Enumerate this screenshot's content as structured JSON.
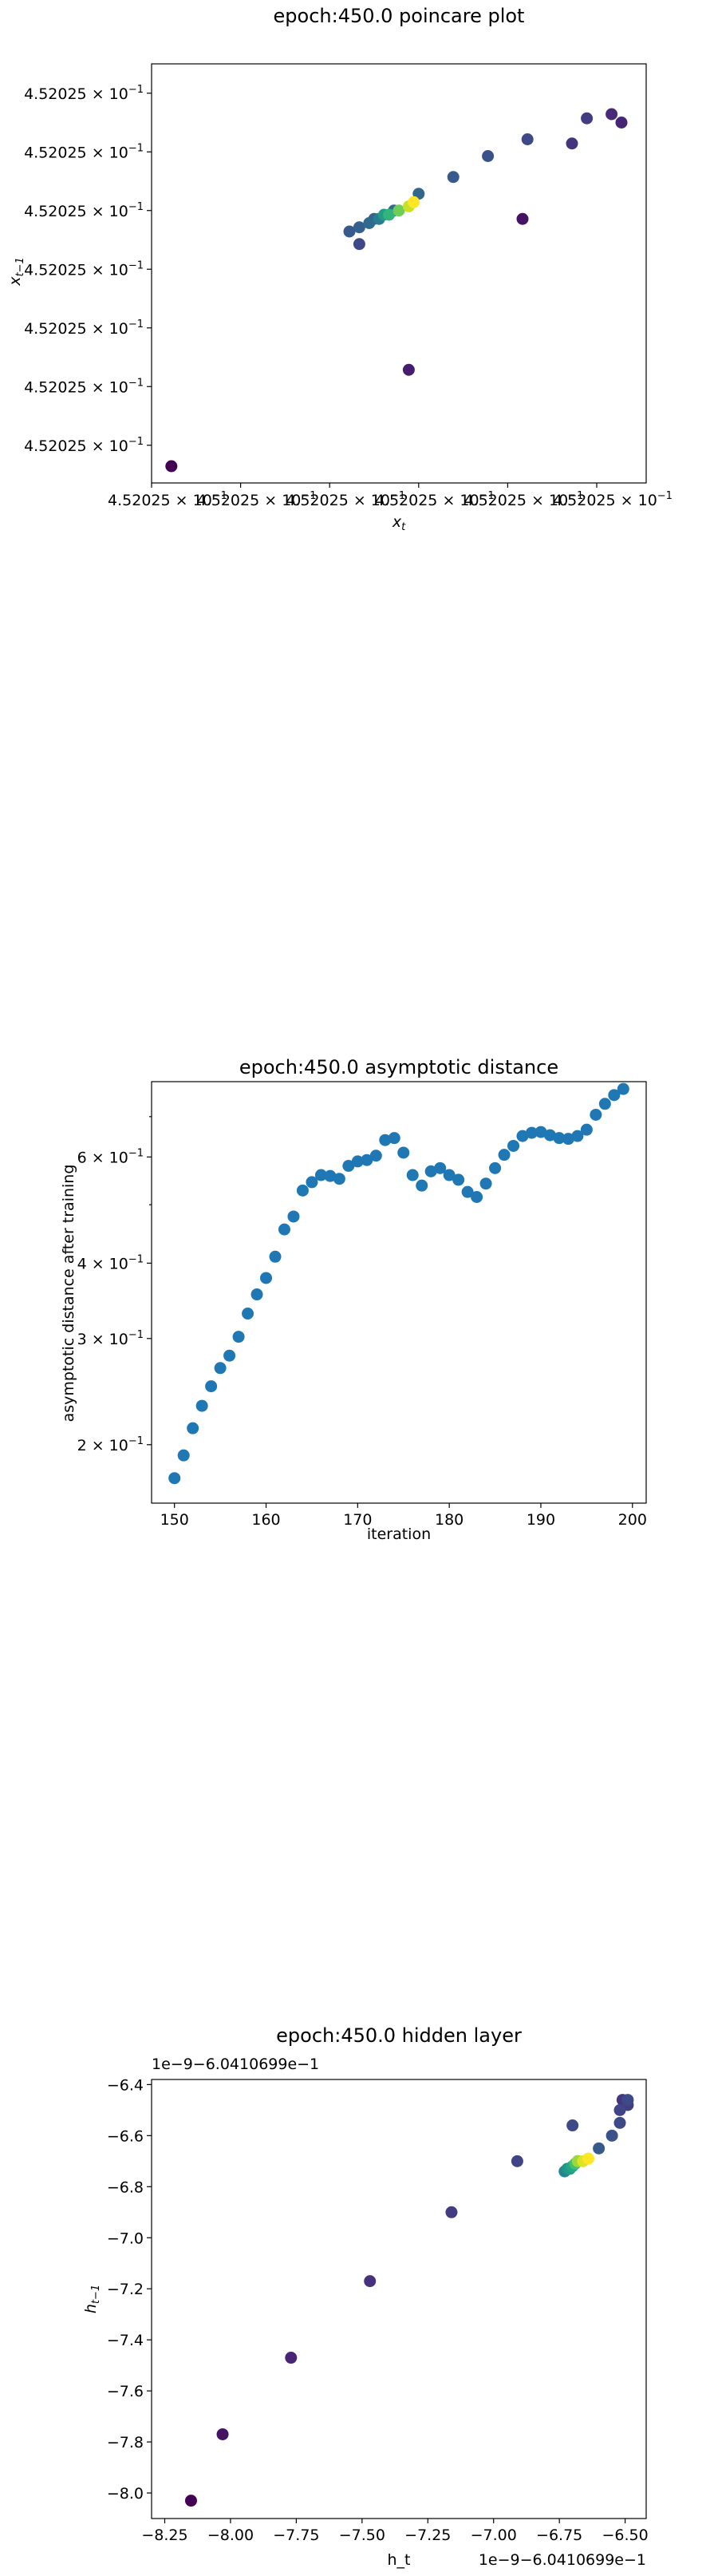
{
  "charts": {
    "poincare": {
      "title": "epoch:450.0 poincare plot",
      "xlabel": "x_t",
      "ylabel": "x_{t-1}",
      "xticklabel": "4.52025 × 10",
      "yticklabel": "4.52025 × 10",
      "tick_exponent": "−1"
    },
    "asymptotic": {
      "title": "epoch:450.0 asymptotic distance",
      "xlabel": "iteration",
      "ylabel": "asymptotic distance after training",
      "offset": "",
      "xticks": [
        "150",
        "160",
        "170",
        "180",
        "190",
        "200"
      ],
      "yticks": [
        {
          "base": "2 × 10",
          "exp": "−1"
        },
        {
          "base": "3 × 10",
          "exp": "−1"
        },
        {
          "base": "4 × 10",
          "exp": "−1"
        },
        {
          "base": "6 × 10",
          "exp": "−1"
        }
      ]
    },
    "hidden": {
      "title": "epoch:450.0 hidden layer",
      "xlabel": "h_t",
      "ylabel": "h_{t-1}",
      "y_offset": "1e−9−6.0410699e−1",
      "x_offset": "1e−9−6.0410699e−1",
      "xticks": [
        "−8.25",
        "−8.00",
        "−7.75",
        "−7.50",
        "−7.25",
        "−7.00",
        "−6.75",
        "−6.50"
      ],
      "yticks": [
        "−6.4",
        "−6.6",
        "−6.8",
        "−7.0",
        "−7.2",
        "−7.4",
        "−7.6",
        "−7.8",
        "−8.0"
      ]
    }
  },
  "chart_data": [
    {
      "type": "scatter",
      "title": "epoch:450.0 poincare plot",
      "xlabel": "x_t",
      "ylabel": "x_{t-1}",
      "xlim": [
        0,
        1
      ],
      "ylim": [
        0,
        1
      ],
      "x": [
        0.04,
        0.42,
        0.4,
        0.42,
        0.45,
        0.49,
        0.54,
        0.61,
        0.68,
        0.76,
        0.88,
        0.85,
        0.93,
        0.95,
        0.44,
        0.46,
        0.47,
        0.48,
        0.5,
        0.52,
        0.53,
        0.75
      ],
      "y": [
        0.04,
        0.57,
        0.6,
        0.61,
        0.63,
        0.65,
        0.69,
        0.73,
        0.78,
        0.82,
        0.87,
        0.81,
        0.88,
        0.86,
        0.62,
        0.63,
        0.64,
        0.64,
        0.65,
        0.66,
        0.67,
        0.63
      ],
      "c": [
        0.0,
        0.22,
        0.28,
        0.3,
        0.32,
        0.35,
        0.33,
        0.28,
        0.25,
        0.22,
        0.18,
        0.15,
        0.12,
        0.1,
        0.35,
        0.42,
        0.55,
        0.65,
        0.78,
        0.92,
        1.0,
        0.05
      ],
      "extra": {
        "x": [
          0.52
        ],
        "y": [
          0.27
        ],
        "c": [
          0.08
        ]
      }
    },
    {
      "type": "scatter",
      "title": "epoch:450.0 asymptotic distance",
      "xlabel": "iteration",
      "ylabel": "asymptotic distance after training",
      "yscale": "log",
      "xlim": [
        147.5,
        201.5
      ],
      "ylim": [
        0.16,
        0.8
      ],
      "x": [
        150,
        151,
        152,
        153,
        154,
        155,
        156,
        157,
        158,
        159,
        160,
        161,
        162,
        163,
        164,
        165,
        166,
        167,
        168,
        169,
        170,
        171,
        172,
        173,
        174,
        175,
        176,
        177,
        178,
        179,
        180,
        181,
        182,
        183,
        184,
        185,
        186,
        187,
        188,
        189,
        190,
        191,
        192,
        193,
        194,
        195,
        196,
        197,
        198,
        199
      ],
      "y": [
        0.176,
        0.192,
        0.213,
        0.232,
        0.25,
        0.268,
        0.281,
        0.302,
        0.33,
        0.355,
        0.378,
        0.41,
        0.455,
        0.478,
        0.528,
        0.545,
        0.56,
        0.558,
        0.552,
        0.58,
        0.59,
        0.593,
        0.603,
        0.64,
        0.645,
        0.61,
        0.56,
        0.538,
        0.568,
        0.575,
        0.56,
        0.55,
        0.525,
        0.515,
        0.542,
        0.575,
        0.605,
        0.626,
        0.65,
        0.658,
        0.66,
        0.652,
        0.645,
        0.643,
        0.65,
        0.666,
        0.705,
        0.735,
        0.76,
        0.778
      ]
    },
    {
      "type": "scatter",
      "title": "epoch:450.0 hidden layer",
      "xlabel": "h_t",
      "ylabel": "h_{t-1}",
      "xlim": [
        -8.3,
        -6.42
      ],
      "ylim": [
        -8.1,
        -6.38
      ],
      "x": [
        -8.15,
        -8.03,
        -7.77,
        -7.47,
        -7.16,
        -6.91,
        -6.7,
        -6.68,
        -6.6,
        -6.55,
        -6.52,
        -6.49,
        -6.51,
        -6.73,
        -6.72,
        -6.71,
        -6.7,
        -6.69,
        -6.68,
        -6.66,
        -6.64,
        -6.52,
        -6.49
      ],
      "y": [
        -8.03,
        -7.77,
        -7.47,
        -7.17,
        -6.9,
        -6.7,
        -6.56,
        -6.7,
        -6.65,
        -6.6,
        -6.55,
        -6.48,
        -6.46,
        -6.74,
        -6.73,
        -6.73,
        -6.72,
        -6.71,
        -6.7,
        -6.7,
        -6.69,
        -6.5,
        -6.46
      ],
      "c": [
        0.0,
        0.05,
        0.1,
        0.14,
        0.18,
        0.2,
        0.22,
        0.26,
        0.28,
        0.25,
        0.22,
        0.18,
        0.16,
        0.45,
        0.5,
        0.55,
        0.6,
        0.7,
        0.85,
        0.95,
        1.0,
        0.2,
        0.22
      ]
    }
  ]
}
